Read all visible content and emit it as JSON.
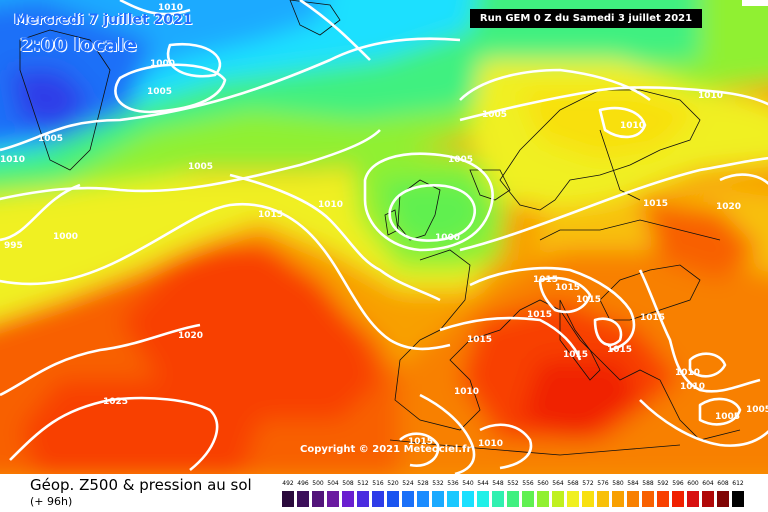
{
  "header": {
    "date": "Mercredi 7 juillet 2021",
    "time": "2:00 locale",
    "run": "Run GEM 0 Z du Samedi 3 juillet 2021"
  },
  "copyright": "Copyright © 2021 Meteociel.fr",
  "footer": {
    "title": "Géop. Z500 & pression au sol",
    "subtitle": "(+ 96h)"
  },
  "legend": {
    "values": [
      "492",
      "496",
      "500",
      "504",
      "508",
      "512",
      "516",
      "520",
      "524",
      "528",
      "532",
      "536",
      "540",
      "544",
      "548",
      "552",
      "556",
      "560",
      "564",
      "568",
      "572",
      "576",
      "580",
      "584",
      "588",
      "592",
      "596",
      "600",
      "604",
      "608",
      "612"
    ],
    "colors": [
      "#2a0a3c",
      "#3c0f5a",
      "#52147a",
      "#6a1aa0",
      "#6a1fd0",
      "#4b2ce0",
      "#2e3ce8",
      "#1a54f0",
      "#1a70f8",
      "#1a8cff",
      "#1aaaff",
      "#1ac8ff",
      "#1ae0ff",
      "#20f0e8",
      "#30f0b0",
      "#40f080",
      "#60f050",
      "#90f030",
      "#c0f020",
      "#f0f020",
      "#f8e010",
      "#f8c008",
      "#f8a000",
      "#f88000",
      "#f86000",
      "#f84000",
      "#f02000",
      "#d81010",
      "#b00808",
      "#800404",
      "#000000"
    ]
  },
  "isobars": [
    "1010",
    "1000",
    "1005",
    "1005",
    "1010",
    "1005",
    "1000",
    "1015",
    "1010",
    "1000",
    "995",
    "1020",
    "1025",
    "1005",
    "1010",
    "1010",
    "1020",
    "1005",
    "1015",
    "1015",
    "1015",
    "1015",
    "1015",
    "1015",
    "1015",
    "1015",
    "1015",
    "1010",
    "1010",
    "1005",
    "1010",
    "1015",
    "1010",
    "1005"
  ]
}
